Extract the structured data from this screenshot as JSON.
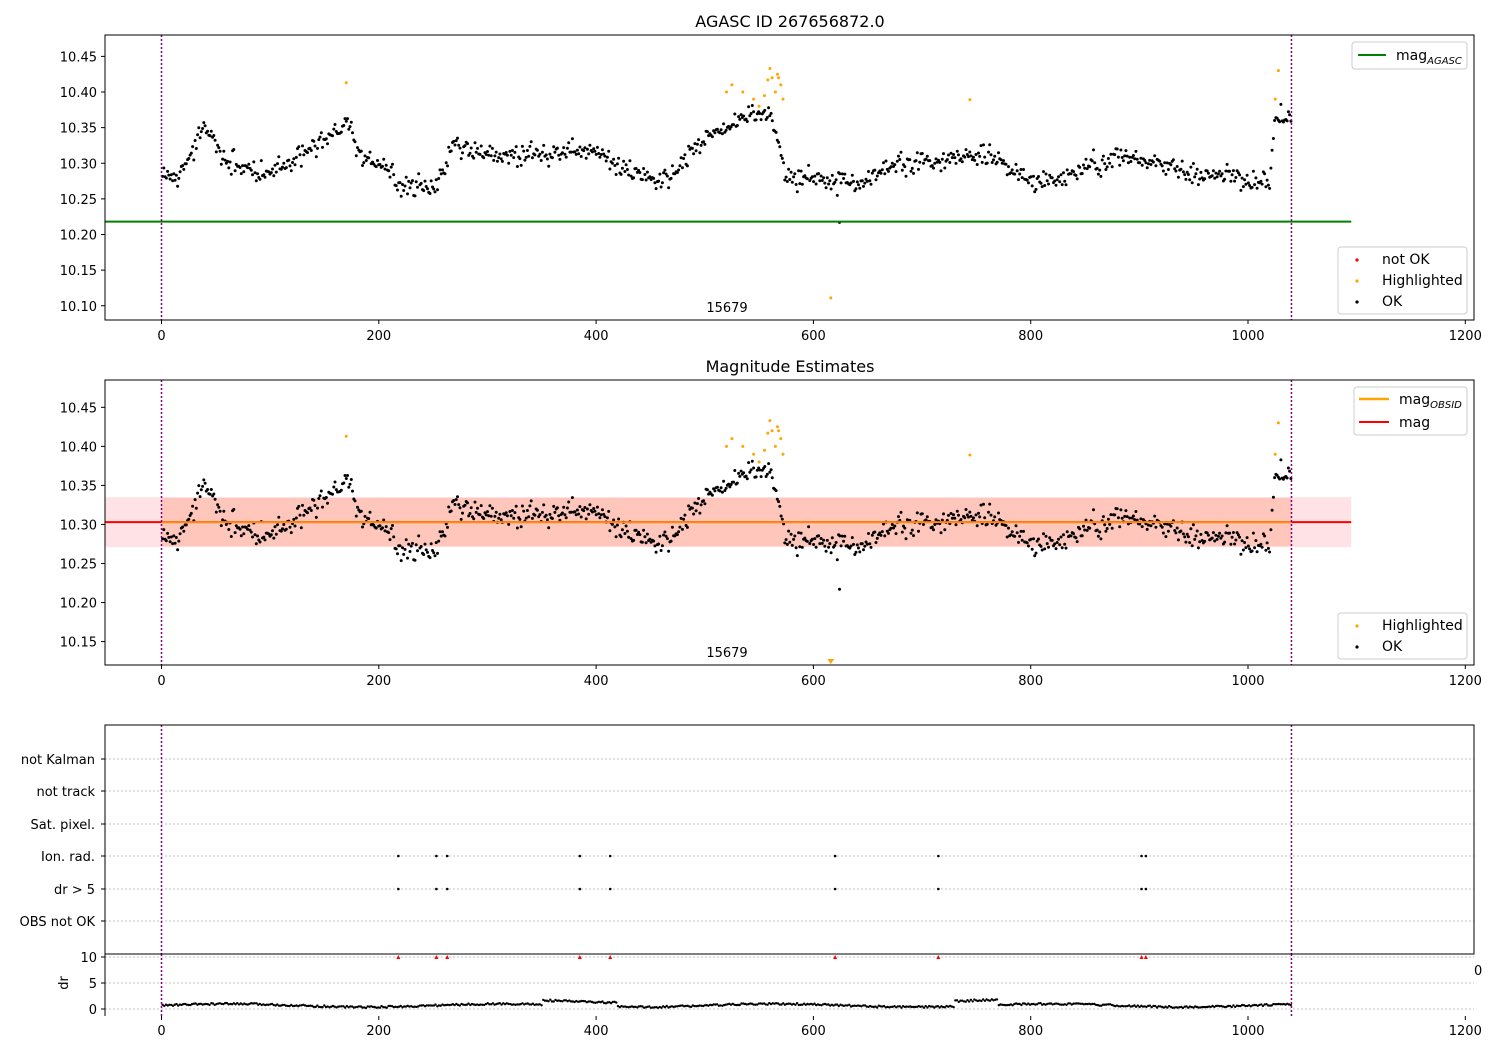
{
  "figure_title": "AGASC ID 267656872.0",
  "chart_data": [
    {
      "type": "scatter",
      "id": "agasc",
      "title": "AGASC ID 267656872.0",
      "xlim": [
        -52,
        1208
      ],
      "ylim": [
        10.08,
        10.48
      ],
      "xticks": [
        0,
        200,
        400,
        600,
        800,
        1000,
        1200
      ],
      "yticks": [
        10.1,
        10.15,
        10.2,
        10.25,
        10.3,
        10.35,
        10.4,
        10.45
      ],
      "vlines": [
        0,
        1040
      ],
      "annotation": {
        "text": "15679",
        "x": 520,
        "y": 10.1
      },
      "hlines": [
        {
          "name": "magAGASC",
          "y": 10.218,
          "x0": -52,
          "x1": 1095,
          "color": "#008000"
        }
      ],
      "legend_lines": [
        {
          "label": "mag",
          "sub": "AGASC",
          "color": "#008000"
        }
      ],
      "legend_points": [
        {
          "label": "not OK",
          "color": "#ff0000"
        },
        {
          "label": "Highlighted",
          "color": "#ffa500"
        },
        {
          "label": "OK",
          "color": "#000000"
        }
      ],
      "highlighted": [
        [
          170,
          10.413
        ],
        [
          520,
          10.4
        ],
        [
          525,
          10.41
        ],
        [
          535,
          10.4
        ],
        [
          545,
          10.39
        ],
        [
          550,
          10.38
        ],
        [
          555,
          10.395
        ],
        [
          558,
          10.417
        ],
        [
          560,
          10.433
        ],
        [
          562,
          10.42
        ],
        [
          565,
          10.4
        ],
        [
          567,
          10.425
        ],
        [
          570,
          10.41
        ],
        [
          572,
          10.39
        ],
        [
          568,
          10.42
        ],
        [
          744,
          10.389
        ],
        [
          616,
          10.111
        ],
        [
          1025,
          10.39
        ],
        [
          1028,
          10.43
        ]
      ]
    },
    {
      "type": "scatter",
      "id": "magest",
      "title": "Magnitude Estimates",
      "xlim": [
        -52,
        1208
      ],
      "ylim": [
        10.12,
        10.485
      ],
      "xticks": [
        0,
        200,
        400,
        600,
        800,
        1000,
        1200
      ],
      "yticks": [
        10.15,
        10.2,
        10.25,
        10.3,
        10.35,
        10.4,
        10.45
      ],
      "vlines": [
        0,
        1040
      ],
      "annotation": {
        "text": "15679",
        "x": 520,
        "y": 10.138
      },
      "mag": 10.303,
      "mag_band": [
        10.271,
        10.335
      ],
      "mag_obsid_band": [
        10.272,
        10.334
      ],
      "band_x1": 1095,
      "offscale_marker": {
        "x": 616,
        "y": 10.123
      },
      "legend_lines": [
        {
          "label": "mag",
          "sub": "OBSID",
          "color": "#ffa500"
        },
        {
          "label": "mag",
          "sub": "",
          "color": "#ff0000"
        }
      ],
      "legend_points": [
        {
          "label": "Highlighted",
          "color": "#ffa500"
        },
        {
          "label": "OK",
          "color": "#000000"
        }
      ],
      "highlighted": [
        [
          170,
          10.413
        ],
        [
          520,
          10.4
        ],
        [
          525,
          10.41
        ],
        [
          535,
          10.4
        ],
        [
          545,
          10.39
        ],
        [
          550,
          10.38
        ],
        [
          555,
          10.395
        ],
        [
          558,
          10.417
        ],
        [
          560,
          10.433
        ],
        [
          562,
          10.42
        ],
        [
          565,
          10.4
        ],
        [
          567,
          10.425
        ],
        [
          570,
          10.41
        ],
        [
          572,
          10.39
        ],
        [
          568,
          10.42
        ],
        [
          744,
          10.389
        ],
        [
          1025,
          10.39
        ],
        [
          1028,
          10.43
        ]
      ]
    },
    {
      "type": "scatter",
      "id": "flags",
      "xlim": [
        -52,
        1208
      ],
      "vlines": [
        0,
        1040
      ],
      "categories": [
        "not Kalman",
        "not track",
        "Sat. pixel.",
        "Ion. rad.",
        "dr > 5",
        "OBS not OK"
      ],
      "flag_x": [
        218,
        253,
        263,
        385,
        413,
        620,
        715,
        902,
        906
      ],
      "flag_rows": [
        "Ion. rad.",
        "dr > 5"
      ]
    },
    {
      "type": "scatter",
      "id": "dr",
      "ylabel": "dr",
      "xlim": [
        -52,
        1208
      ],
      "ylim": [
        -1,
        10.5
      ],
      "yticks": [
        0,
        5,
        10
      ],
      "xticks": [
        0,
        200,
        400,
        600,
        800,
        1000,
        1200
      ],
      "edge_label": "0",
      "vlines": [
        0,
        1040
      ],
      "capped_x": [
        218,
        253,
        263,
        385,
        413,
        620,
        715,
        902,
        906
      ],
      "cap_value": 10
    }
  ]
}
